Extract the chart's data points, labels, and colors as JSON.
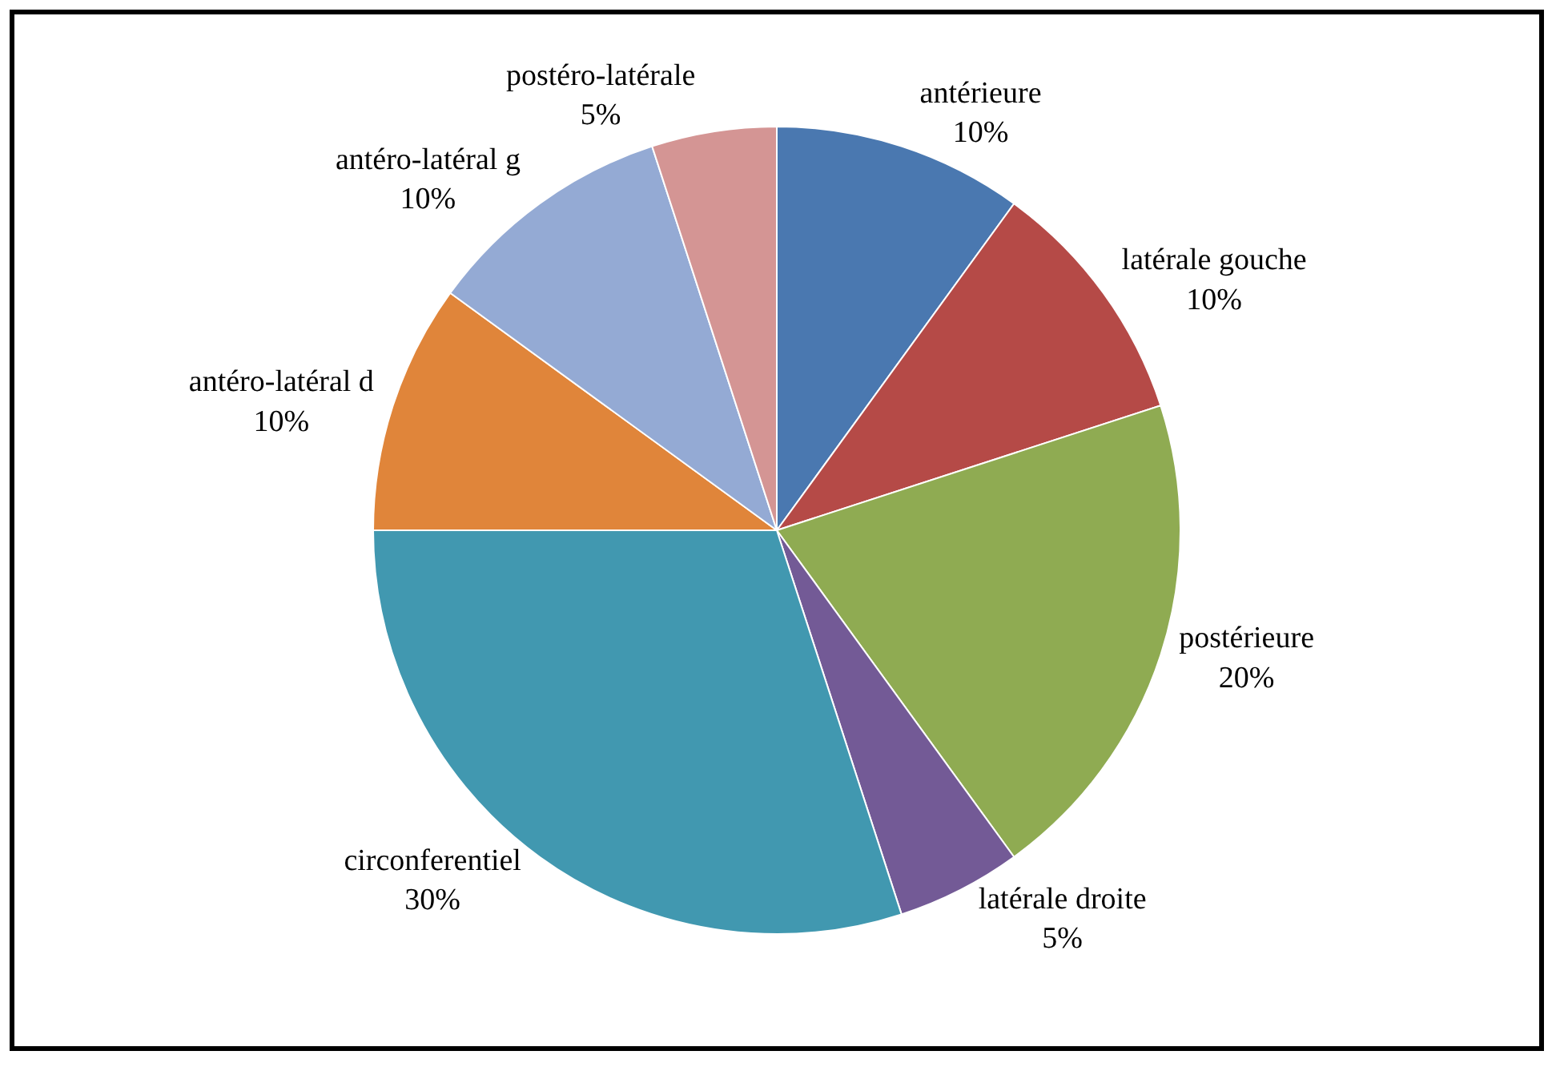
{
  "chart_data": {
    "type": "pie",
    "categories": [
      "antérieure",
      "latérale gouche",
      "postérieure",
      "latérale droite",
      "circonferentiel",
      "antéro-latéral d",
      "antéro-latéral g",
      "postéro-latérale"
    ],
    "values": [
      10,
      10,
      20,
      5,
      30,
      10,
      10,
      5
    ],
    "value_labels": [
      "10%",
      "10%",
      "20%",
      "5%",
      "30%",
      "10%",
      "10%",
      "5%"
    ],
    "colors": [
      "#4a78b0",
      "#b54a47",
      "#8fab52",
      "#735a96",
      "#4198b0",
      "#e0853a",
      "#94aad4",
      "#d49594"
    ],
    "legend": false
  }
}
